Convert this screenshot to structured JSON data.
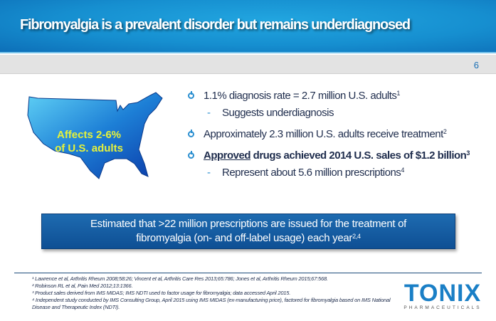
{
  "header": {
    "title": "Fibromyalgia is a prevalent disorder but remains underdiagnosed",
    "page_number": "6"
  },
  "map": {
    "label_line1": "Affects 2-6%",
    "label_line2": "of U.S. adults"
  },
  "bullets": [
    {
      "text": "1.1% diagnosis rate = 2.7 million U.S. adults",
      "sup": "1"
    },
    {
      "sub": "Suggests underdiagnosis"
    },
    {
      "text": "Approximately 2.3 million U.S. adults receive treatment",
      "sup": "2"
    },
    {
      "underlined": "Approved",
      "text": " drugs achieved 2014 U.S. sales of $1.2 billion",
      "sup": "3"
    },
    {
      "sub": "Represent about 5.6 million prescriptions",
      "sup": "4"
    }
  ],
  "callout": {
    "line1": "Estimated that >22 million prescriptions are issued for the treatment of",
    "line2": "fibromyalgia (on- and off-label usage) each year",
    "sup": "2,4"
  },
  "footnotes": [
    "¹ Lawrence et al, Arthritis Rheum 2008;58:26; Vincent et al, Arthritis Care Res 2013;65:786; Jones et al, Arthritis Rheum 2015;67:568.",
    "² Robinson RL et al, Pain Med 2012;13:1366.",
    "³ Product sales derived from IMS MIDAS; IMS NDTI used to factor usage for fibromyalgia; data accessed April 2015.",
    "⁴ Independent study conducted by IMS Consulting Group, April 2015 using IMS MIDAS (ex-manufacturing price), factored for fibromyalgia based on IMS National Disease and Therapeutic Index (NDTI)."
  ],
  "logo": {
    "name": "TONIX",
    "subtitle": "PHARMACEUTICALS"
  },
  "colors": {
    "header_blue": "#168fd0",
    "text_navy": "#1f2d4d",
    "map_label": "#e6f23a",
    "callout": "#1e6bb0"
  }
}
